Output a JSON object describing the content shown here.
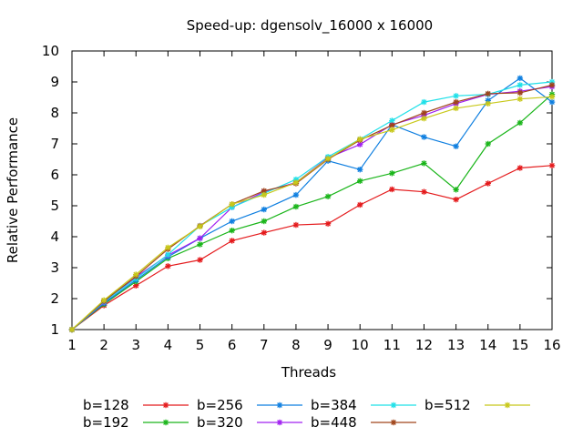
{
  "chart_data": {
    "type": "line",
    "title": "Speed-up: dgensolv_16000 x 16000",
    "xlabel": "Threads",
    "ylabel": "Relative Performance",
    "xlim": [
      1,
      16
    ],
    "ylim": [
      1,
      10
    ],
    "x": [
      1,
      2,
      3,
      4,
      5,
      6,
      7,
      8,
      9,
      10,
      11,
      12,
      13,
      14,
      15,
      16
    ],
    "xticks": [
      "1",
      "2",
      "3",
      "4",
      "5",
      "6",
      "7",
      "8",
      "9",
      "10",
      "11",
      "12",
      "13",
      "14",
      "15",
      "16"
    ],
    "yticks": [
      "1",
      "2",
      "3",
      "4",
      "5",
      "6",
      "7",
      "8",
      "9",
      "10"
    ],
    "legend_position": "bottom",
    "grid": false,
    "series": [
      {
        "name": "b=128",
        "color": "#e41a1c",
        "values": [
          1.0,
          1.78,
          2.42,
          3.05,
          3.25,
          3.87,
          4.13,
          4.38,
          4.42,
          5.03,
          5.53,
          5.45,
          5.2,
          5.72,
          6.22,
          6.3
        ]
      },
      {
        "name": "b=192",
        "color": "#1ab51a",
        "values": [
          1.0,
          1.82,
          2.55,
          3.3,
          3.75,
          4.2,
          4.5,
          4.97,
          5.3,
          5.8,
          6.05,
          6.37,
          5.52,
          7.0,
          7.68,
          8.6
        ]
      },
      {
        "name": "b=256",
        "color": "#0f7fe0",
        "values": [
          1.0,
          1.85,
          2.6,
          3.35,
          3.95,
          4.5,
          4.88,
          5.35,
          6.45,
          6.17,
          7.62,
          7.22,
          6.92,
          8.4,
          9.12,
          8.35
        ]
      },
      {
        "name": "b=320",
        "color": "#a020f0",
        "values": [
          1.0,
          1.88,
          2.7,
          3.4,
          3.95,
          4.95,
          5.45,
          5.75,
          6.55,
          6.98,
          7.62,
          7.92,
          8.3,
          8.6,
          8.7,
          8.85
        ]
      },
      {
        "name": "b=384",
        "color": "#1fe0e8",
        "values": [
          1.0,
          1.9,
          2.65,
          3.42,
          4.35,
          4.95,
          5.4,
          5.85,
          6.58,
          7.15,
          7.75,
          8.35,
          8.55,
          8.6,
          8.9,
          9.0
        ]
      },
      {
        "name": "b=448",
        "color": "#a0451a",
        "values": [
          1.0,
          1.92,
          2.72,
          3.6,
          4.35,
          5.05,
          5.48,
          5.72,
          6.5,
          7.12,
          7.6,
          8.0,
          8.35,
          8.62,
          8.65,
          8.9
        ]
      },
      {
        "name": "b=512",
        "color": "#c8c81a",
        "values": [
          1.0,
          1.95,
          2.78,
          3.65,
          4.33,
          5.05,
          5.35,
          5.75,
          6.52,
          7.15,
          7.45,
          7.82,
          8.15,
          8.3,
          8.45,
          8.52
        ]
      }
    ]
  }
}
